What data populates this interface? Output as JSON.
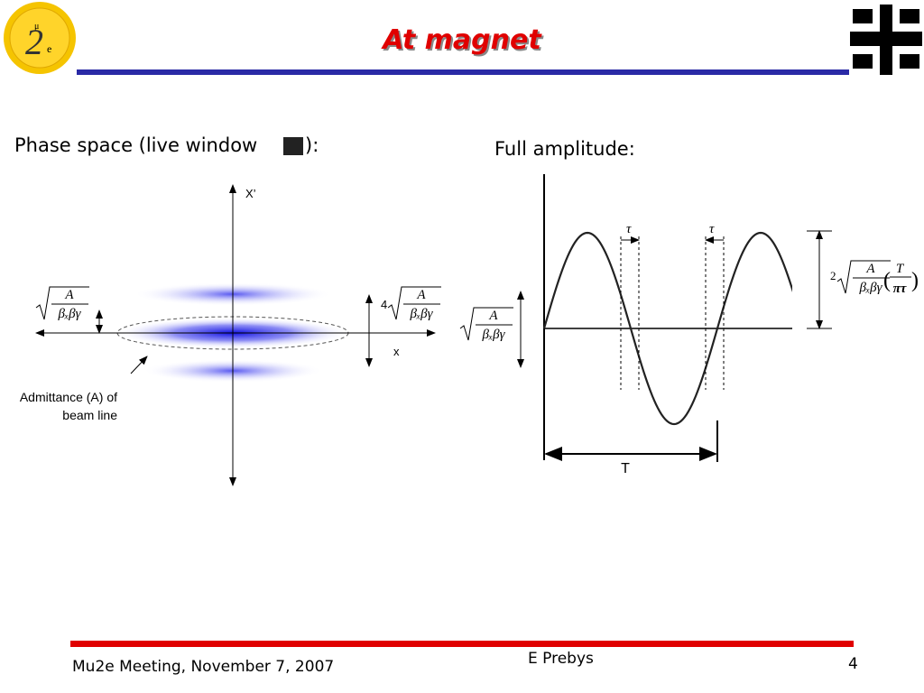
{
  "header": {
    "title": "At magnet",
    "logo": {
      "mu": "μ",
      "two": "2",
      "e": "e"
    }
  },
  "left": {
    "heading_start": "Phase space (live window",
    "heading_end": "):",
    "y_axis": "X’",
    "x_axis": "x",
    "factor": "4",
    "note_line1": "Admittance (A) of",
    "note_line2": "beam line"
  },
  "right": {
    "heading": "Full amplitude:",
    "tau": "τ",
    "period": "T",
    "factor": "2"
  },
  "formula": {
    "numerator": "A",
    "denominator": "βₓβγ",
    "ratio_top": "T",
    "ratio_bottom": "πτ"
  },
  "footer": {
    "meeting": "Mu2e Meeting, November 7, 2007",
    "author": "E Prebys",
    "page": "4"
  }
}
